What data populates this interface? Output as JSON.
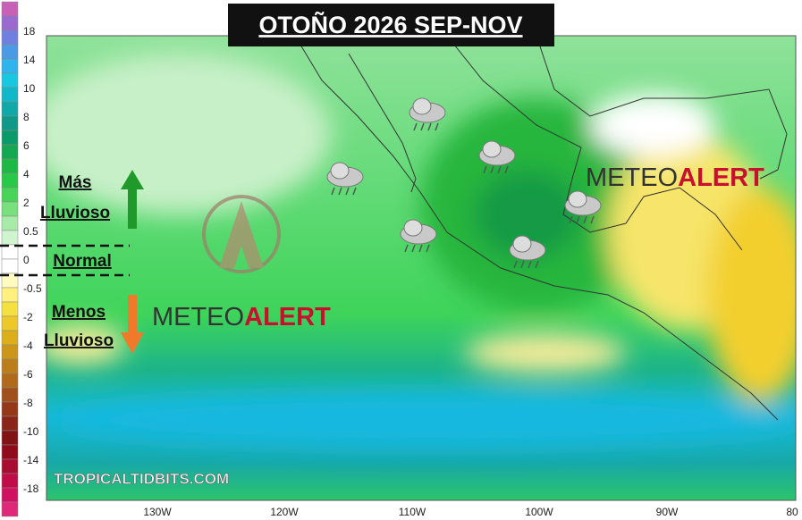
{
  "title": "OTOÑO 2026 SEP-NOV",
  "colorbar": {
    "labels": [
      "18",
      "14",
      "10",
      "8",
      "6",
      "4",
      "2",
      "0.5",
      "0",
      "-0.5",
      "-2",
      "-4",
      "-6",
      "-8",
      "-10",
      "-14",
      "-18"
    ]
  },
  "legend": {
    "wetter": [
      "Más",
      "Lluvioso"
    ],
    "normal": "Normal",
    "drier": [
      "Menos",
      "Lluvioso"
    ]
  },
  "logo": {
    "meteo": "METEO",
    "alert": "ALERT"
  },
  "source": "TROPICALTIDBITS.COM",
  "longitudes": [
    "130W",
    "120W",
    "110W",
    "100W",
    "90W",
    "80"
  ]
}
